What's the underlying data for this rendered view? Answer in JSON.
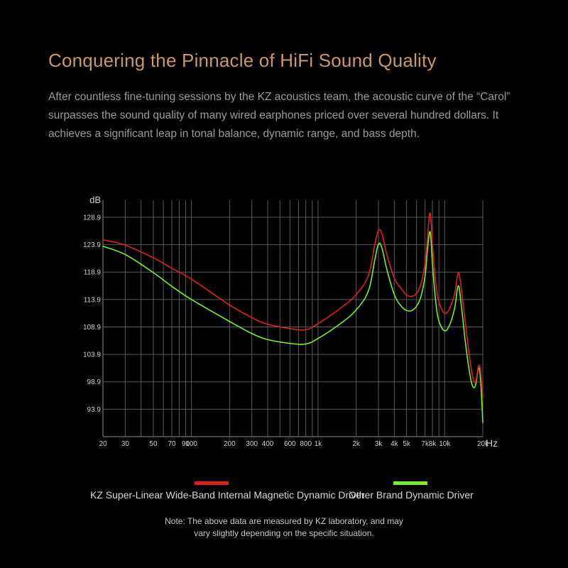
{
  "header": {
    "title": "Conquering the Pinnacle of HiFi Sound Quality",
    "description_lines": [
      "After countless fine-tuning sessions by the KZ acoustics team, the acoustic curve of the “Carol”",
      "surpasses the sound quality of many wired earphones priced over several hundred dollars. It",
      "achieves a significant leap in tonal balance, dynamic range, and bass depth."
    ]
  },
  "colors": {
    "title": "#c9976a",
    "series_kz": "#e0201e",
    "series_other": "#76f026",
    "grid": "#5a5a5a"
  },
  "chart_data": {
    "type": "line",
    "xscale": "log",
    "xlabel": "Hz",
    "ylabel": "dB",
    "xlim": [
      20,
      20000
    ],
    "ylim": [
      88.9,
      132
    ],
    "grid": true,
    "legend_position": "bottom",
    "x_tick_values": [
      20,
      30,
      40,
      50,
      60,
      70,
      80,
      90,
      100,
      200,
      300,
      400,
      500,
      600,
      700,
      800,
      900,
      1000,
      2000,
      3000,
      4000,
      5000,
      6000,
      7000,
      8000,
      9000,
      10000,
      20000
    ],
    "x_tick_labels": [
      {
        "value": 20,
        "label": "20"
      },
      {
        "value": 30,
        "label": "30"
      },
      {
        "value": 50,
        "label": "50"
      },
      {
        "value": 70,
        "label": "70"
      },
      {
        "value": 90,
        "label": "90"
      },
      {
        "value": 100,
        "label": "100"
      },
      {
        "value": 200,
        "label": "200"
      },
      {
        "value": 300,
        "label": "300"
      },
      {
        "value": 400,
        "label": "400"
      },
      {
        "value": 600,
        "label": "600"
      },
      {
        "value": 800,
        "label": "800"
      },
      {
        "value": 1000,
        "label": "1k"
      },
      {
        "value": 2000,
        "label": "2k"
      },
      {
        "value": 3000,
        "label": "3k"
      },
      {
        "value": 4000,
        "label": "4k"
      },
      {
        "value": 5000,
        "label": "5k"
      },
      {
        "value": 7000,
        "label": "7k"
      },
      {
        "value": 8000,
        "label": "8k"
      },
      {
        "value": 10000,
        "label": "10k"
      },
      {
        "value": 20000,
        "label": "20k"
      }
    ],
    "y_ticks": [
      {
        "value": 128.9,
        "label": "128.9"
      },
      {
        "value": 123.9,
        "label": "123.9"
      },
      {
        "value": 118.9,
        "label": "118.9"
      },
      {
        "value": 113.9,
        "label": "113.9"
      },
      {
        "value": 108.9,
        "label": "108.9"
      },
      {
        "value": 103.9,
        "label": "103.9"
      },
      {
        "value": 98.9,
        "label": "98.9"
      },
      {
        "value": 93.9,
        "label": "93.9"
      }
    ],
    "series": [
      {
        "name": "KZ Super-Linear Wide-Band Internal Magnetic Dynamic Driver",
        "color": "#e0201e",
        "points": [
          [
            20,
            124.8
          ],
          [
            30,
            123.8
          ],
          [
            50,
            121.5
          ],
          [
            70,
            119.6
          ],
          [
            100,
            117.6
          ],
          [
            200,
            112.9
          ],
          [
            300,
            110.6
          ],
          [
            400,
            109.4
          ],
          [
            600,
            108.6
          ],
          [
            800,
            108.4
          ],
          [
            1000,
            109.5
          ],
          [
            1500,
            112.3
          ],
          [
            2000,
            114.8
          ],
          [
            2500,
            118.3
          ],
          [
            2800,
            123.8
          ],
          [
            3000,
            126.5
          ],
          [
            3200,
            125.8
          ],
          [
            3500,
            122.0
          ],
          [
            4000,
            117.8
          ],
          [
            4500,
            116.0
          ],
          [
            5000,
            114.7
          ],
          [
            5500,
            114.5
          ],
          [
            6000,
            115.0
          ],
          [
            6500,
            116.8
          ],
          [
            7000,
            120.5
          ],
          [
            7300,
            125.0
          ],
          [
            7600,
            129.5
          ],
          [
            7800,
            128.2
          ],
          [
            8000,
            124.0
          ],
          [
            8500,
            117.0
          ],
          [
            9000,
            113.5
          ],
          [
            10000,
            111.4
          ],
          [
            11000,
            112.4
          ],
          [
            12000,
            115.0
          ],
          [
            12800,
            118.8
          ],
          [
            13500,
            116.0
          ],
          [
            14500,
            110.0
          ],
          [
            15500,
            104.5
          ],
          [
            16500,
            100.2
          ],
          [
            17500,
            98.8
          ],
          [
            18500,
            101.8
          ],
          [
            19200,
            100.8
          ],
          [
            20000,
            96.0
          ]
        ]
      },
      {
        "name": "Other Brand Dynamic Driver",
        "color": "#76f026",
        "points": [
          [
            20,
            123.6
          ],
          [
            30,
            122.1
          ],
          [
            50,
            118.8
          ],
          [
            70,
            116.3
          ],
          [
            100,
            113.9
          ],
          [
            200,
            109.9
          ],
          [
            300,
            107.7
          ],
          [
            400,
            106.6
          ],
          [
            600,
            105.9
          ],
          [
            800,
            105.8
          ],
          [
            1000,
            106.8
          ],
          [
            1500,
            109.5
          ],
          [
            2000,
            112.0
          ],
          [
            2500,
            115.5
          ],
          [
            2800,
            121.0
          ],
          [
            3000,
            124.0
          ],
          [
            3200,
            123.2
          ],
          [
            3500,
            119.3
          ],
          [
            4000,
            114.8
          ],
          [
            4500,
            112.8
          ],
          [
            5000,
            111.9
          ],
          [
            5500,
            111.9
          ],
          [
            6000,
            112.7
          ],
          [
            6500,
            114.5
          ],
          [
            7000,
            118.2
          ],
          [
            7300,
            122.8
          ],
          [
            7600,
            126.2
          ],
          [
            7800,
            124.8
          ],
          [
            8000,
            120.5
          ],
          [
            8500,
            113.5
          ],
          [
            9000,
            110.0
          ],
          [
            10000,
            108.2
          ],
          [
            11000,
            109.4
          ],
          [
            12000,
            112.4
          ],
          [
            12800,
            116.4
          ],
          [
            13500,
            113.0
          ],
          [
            14500,
            106.5
          ],
          [
            15500,
            101.5
          ],
          [
            16500,
            98.3
          ],
          [
            17500,
            98.2
          ],
          [
            18500,
            101.4
          ],
          [
            19200,
            99.3
          ],
          [
            20000,
            91.5
          ]
        ]
      }
    ]
  },
  "note_lines": [
    "Note: The above data are measured by KZ laboratory, and may",
    "vary slightly depending on the specific situation."
  ]
}
